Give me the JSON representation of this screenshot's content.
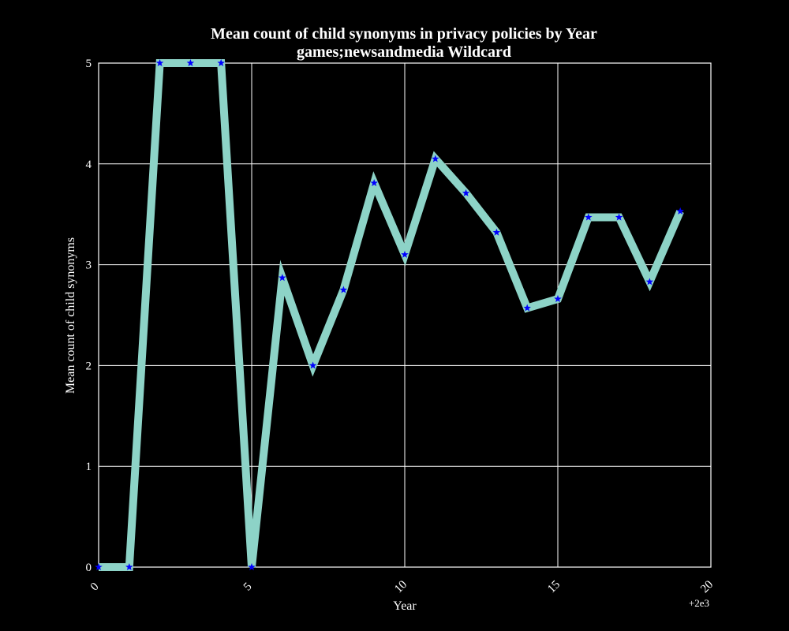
{
  "chart_data": {
    "type": "line",
    "title": "Mean count of child synonyms in privacy policies by Year",
    "subtitle": "games;newsandmedia Wildcard",
    "xlabel": "Year",
    "ylabel": "Mean count of child synonyms",
    "x_offset_label": "+2e3",
    "xlim": [
      0,
      20
    ],
    "ylim": [
      0,
      5
    ],
    "xticks": [
      0,
      5,
      10,
      15,
      20
    ],
    "yticks": [
      0,
      1,
      2,
      3,
      4,
      5
    ],
    "grid": true,
    "background": "#000000",
    "series": [
      {
        "x": [
          0,
          1,
          2,
          3,
          4,
          5,
          6,
          7,
          8,
          9,
          10,
          11,
          12,
          13,
          14,
          15,
          16,
          17,
          18,
          19
        ],
        "values": [
          0,
          0,
          5,
          5,
          5,
          0,
          2.87,
          2.0,
          2.75,
          3.81,
          3.1,
          4.05,
          3.71,
          3.32,
          2.57,
          2.66,
          3.47,
          3.47,
          2.83,
          3.53
        ],
        "line_color": "#8dd3c7",
        "marker": "star",
        "marker_color": "#0000ff"
      }
    ]
  }
}
